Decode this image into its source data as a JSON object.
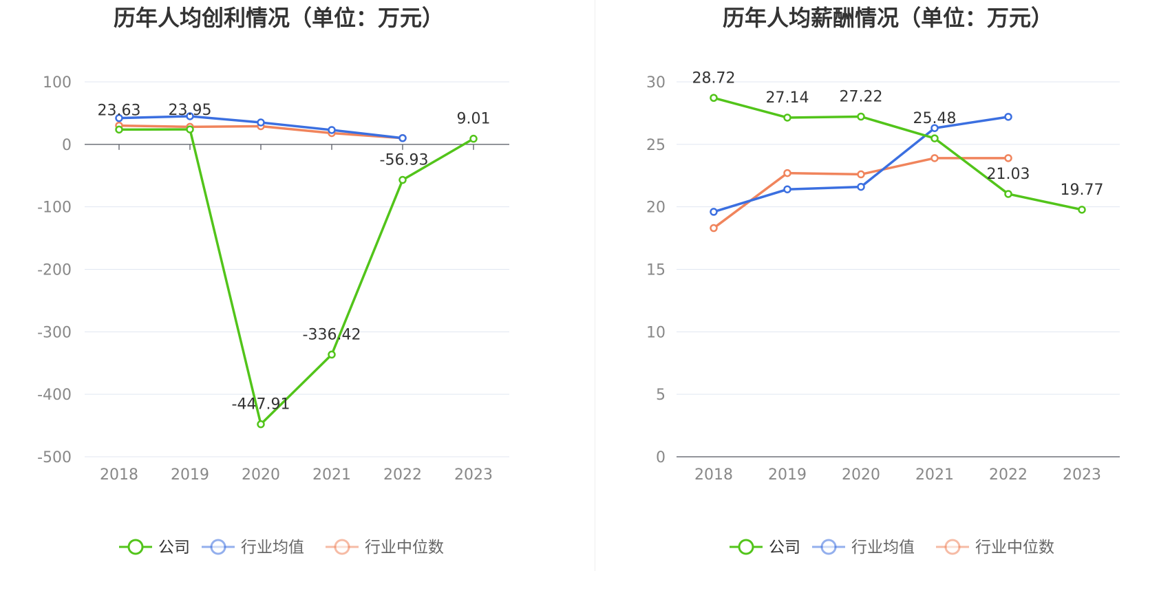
{
  "chart_data": [
    {
      "type": "line",
      "title": "历年人均创利情况（单位：万元）",
      "categories": [
        "2018",
        "2019",
        "2020",
        "2021",
        "2022",
        "2023"
      ],
      "ylim": [
        -500,
        100
      ],
      "yticks": [
        100,
        0,
        -100,
        -200,
        -300,
        -400,
        -500
      ],
      "grid": true,
      "legend_position": "bottom",
      "series": [
        {
          "name": "公司",
          "color": "#52c41a",
          "values": [
            23.63,
            23.95,
            -447.91,
            -336.42,
            -56.93,
            9.01
          ],
          "labels": [
            "23.63",
            "23.95",
            "-447.91",
            "-336.42",
            "-56.93",
            "9.01"
          ]
        },
        {
          "name": "行业均值",
          "color": "#3b6fe0",
          "values": [
            42,
            45,
            35,
            23,
            10,
            null
          ]
        },
        {
          "name": "行业中位数",
          "color": "#f0845c",
          "values": [
            30,
            28,
            29,
            18,
            10,
            null
          ]
        }
      ]
    },
    {
      "type": "line",
      "title": "历年人均薪酬情况（单位：万元）",
      "categories": [
        "2018",
        "2019",
        "2020",
        "2021",
        "2022",
        "2023"
      ],
      "ylim": [
        0,
        30
      ],
      "yticks": [
        30,
        25,
        20,
        15,
        10,
        5,
        0
      ],
      "grid": true,
      "legend_position": "bottom",
      "series": [
        {
          "name": "公司",
          "color": "#52c41a",
          "values": [
            28.72,
            27.14,
            27.22,
            25.48,
            21.03,
            19.77
          ],
          "labels": [
            "28.72",
            "27.14",
            "27.22",
            "25.48",
            "21.03",
            "19.77"
          ]
        },
        {
          "name": "行业均值",
          "color": "#3b6fe0",
          "values": [
            19.6,
            21.4,
            21.6,
            26.3,
            27.2,
            null
          ]
        },
        {
          "name": "行业中位数",
          "color": "#f0845c",
          "values": [
            18.3,
            22.7,
            22.6,
            23.9,
            23.9,
            null
          ]
        }
      ]
    }
  ],
  "legend_colors": {
    "active_text": "#333333",
    "inactive_text": "#666666"
  }
}
